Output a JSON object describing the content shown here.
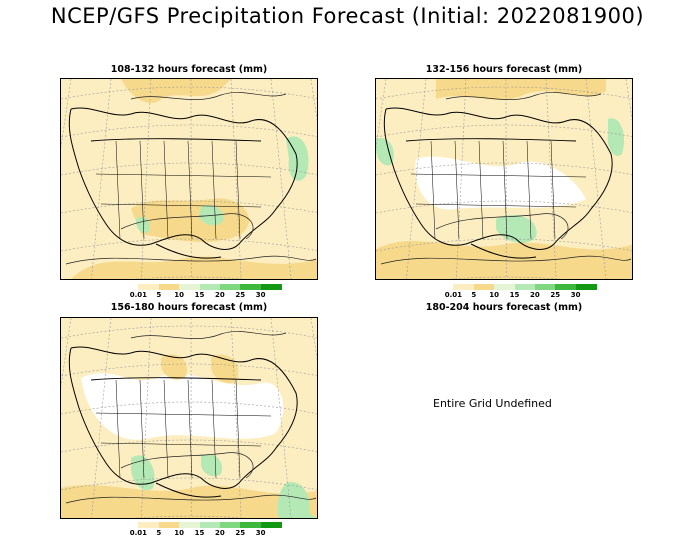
{
  "title": "NCEP/GFS Precipitation Forecast (Initial: 2022081900)",
  "panels": [
    {
      "label": "108-132 hours forecast (mm)",
      "defined": true
    },
    {
      "label": "132-156 hours forecast (mm)",
      "defined": true
    },
    {
      "label": "156-180 hours forecast (mm)",
      "defined": true
    },
    {
      "label": "180-204 hours forecast (mm)",
      "defined": false,
      "message": "Entire Grid Undefined"
    }
  ],
  "legend": {
    "labels": [
      "0.01",
      "5",
      "10",
      "15",
      "20",
      "25",
      "30"
    ],
    "colors": [
      "#ffffff",
      "#fdeec2",
      "#f6d98a",
      "#e4f4d4",
      "#b4e8b4",
      "#7fd87f",
      "#3cb83c",
      "#129812"
    ]
  },
  "colors": {
    "light_precip": "#fdeec2",
    "moderate_precip": "#f6d98a",
    "heavy_precip": "#b4e8b4",
    "contour": "#222222"
  }
}
